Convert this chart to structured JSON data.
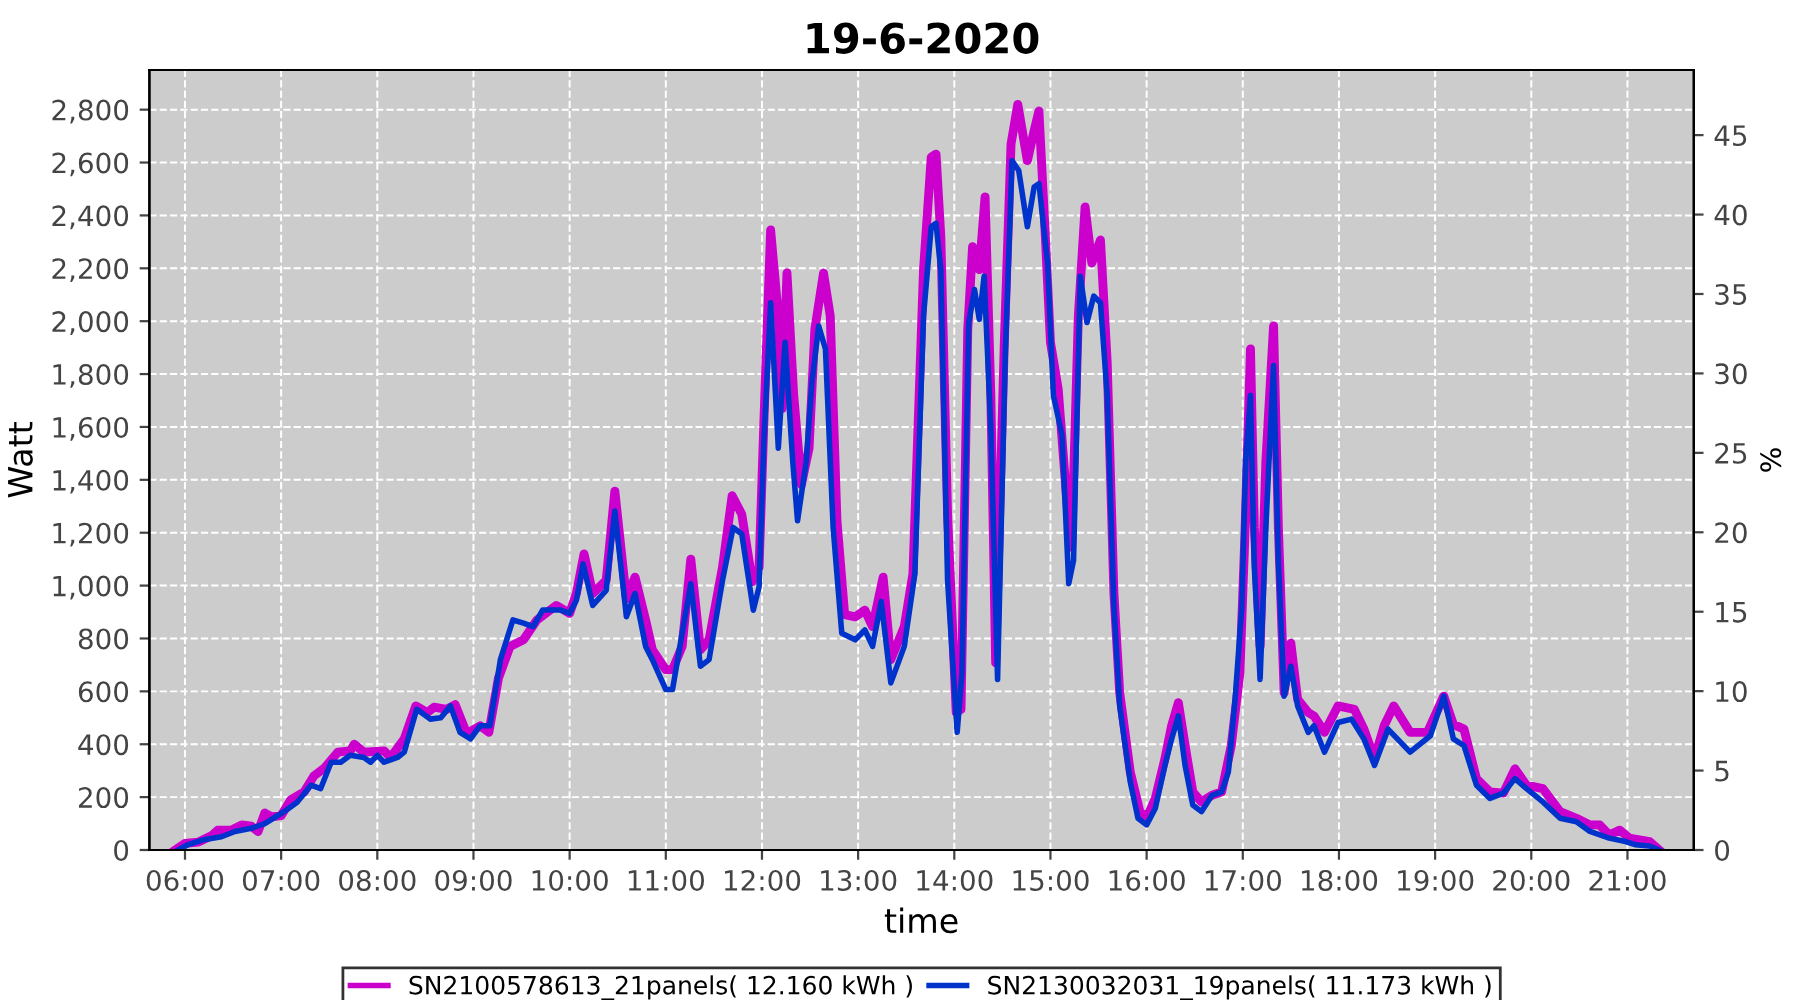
{
  "chart_data": {
    "type": "line",
    "title": "19-6-2020",
    "xlabel": "time",
    "ylabel": "Watt",
    "y2label": "%",
    "xlim": [
      5.63,
      21.69
    ],
    "ylim": [
      0,
      2950
    ],
    "y2lim": [
      0,
      49.1
    ],
    "xticks": [
      {
        "value": 6,
        "label": "06:00"
      },
      {
        "value": 7,
        "label": "07:00"
      },
      {
        "value": 8,
        "label": "08:00"
      },
      {
        "value": 9,
        "label": "09:00"
      },
      {
        "value": 10,
        "label": "10:00"
      },
      {
        "value": 11,
        "label": "11:00"
      },
      {
        "value": 12,
        "label": "12:00"
      },
      {
        "value": 13,
        "label": "13:00"
      },
      {
        "value": 14,
        "label": "14:00"
      },
      {
        "value": 15,
        "label": "15:00"
      },
      {
        "value": 16,
        "label": "16:00"
      },
      {
        "value": 17,
        "label": "17:00"
      },
      {
        "value": 18,
        "label": "18:00"
      },
      {
        "value": 19,
        "label": "19:00"
      },
      {
        "value": 20,
        "label": "20:00"
      },
      {
        "value": 21,
        "label": "21:00"
      }
    ],
    "yticks": [
      {
        "value": 0,
        "label": "0"
      },
      {
        "value": 200,
        "label": "200"
      },
      {
        "value": 400,
        "label": "400"
      },
      {
        "value": 600,
        "label": "600"
      },
      {
        "value": 800,
        "label": "800"
      },
      {
        "value": 1000,
        "label": "1,000"
      },
      {
        "value": 1200,
        "label": "1,200"
      },
      {
        "value": 1400,
        "label": "1,400"
      },
      {
        "value": 1600,
        "label": "1,600"
      },
      {
        "value": 1800,
        "label": "1,800"
      },
      {
        "value": 2000,
        "label": "2,000"
      },
      {
        "value": 2200,
        "label": "2,200"
      },
      {
        "value": 2400,
        "label": "2,400"
      },
      {
        "value": 2600,
        "label": "2,600"
      },
      {
        "value": 2800,
        "label": "2,800"
      }
    ],
    "y2ticks": [
      0,
      5,
      10,
      15,
      20,
      25,
      30,
      35,
      40,
      45
    ],
    "grid": true,
    "legend": "bottom",
    "marker": "none",
    "line_style": "solid",
    "series": [
      {
        "name": "SN2100578613_21panels( 12.160 kWh )",
        "color": "#cc00cc",
        "x": [
          5.9,
          6.0,
          6.14,
          6.28,
          6.34,
          6.48,
          6.59,
          6.69,
          6.76,
          6.83,
          6.9,
          7.0,
          7.1,
          7.24,
          7.34,
          7.45,
          7.59,
          7.72,
          7.76,
          7.86,
          8.07,
          8.14,
          8.28,
          8.4,
          8.52,
          8.59,
          8.72,
          8.81,
          8.93,
          9.07,
          9.16,
          9.26,
          9.38,
          9.52,
          9.66,
          9.86,
          10.0,
          10.07,
          10.15,
          10.24,
          10.38,
          10.47,
          10.59,
          10.68,
          10.79,
          10.86,
          11.0,
          11.07,
          11.17,
          11.26,
          11.36,
          11.45,
          11.59,
          11.69,
          11.79,
          11.9,
          11.97,
          12.02,
          12.09,
          12.17,
          12.21,
          12.26,
          12.33,
          12.41,
          12.49,
          12.55,
          12.64,
          12.71,
          12.78,
          12.86,
          12.97,
          13.07,
          13.15,
          13.26,
          13.34,
          13.48,
          13.57,
          13.68,
          13.76,
          13.81,
          13.86,
          13.93,
          14.02,
          14.07,
          14.14,
          14.19,
          14.26,
          14.32,
          14.38,
          14.43,
          14.52,
          14.59,
          14.66,
          14.76,
          14.83,
          14.88,
          14.94,
          15.0,
          15.08,
          15.17,
          15.22,
          15.29,
          15.36,
          15.43,
          15.52,
          15.59,
          15.66,
          15.72,
          15.83,
          15.93,
          16.0,
          16.09,
          16.19,
          16.26,
          16.33,
          16.4,
          16.48,
          16.57,
          16.68,
          16.78,
          16.88,
          16.97,
          17.02,
          17.08,
          17.12,
          17.18,
          17.24,
          17.32,
          17.37,
          17.43,
          17.5,
          17.57,
          17.68,
          17.74,
          17.85,
          17.99,
          18.16,
          18.26,
          18.37,
          18.47,
          18.57,
          18.74,
          18.92,
          19.09,
          19.19,
          19.3,
          19.43,
          19.57,
          19.71,
          19.83,
          19.95,
          20.12,
          20.3,
          20.47,
          20.61,
          20.71,
          20.81,
          20.92,
          21.02,
          21.23,
          21.33
        ],
        "values": [
          0,
          25,
          30,
          55,
          75,
          75,
          95,
          90,
          70,
          140,
          125,
          130,
          190,
          220,
          280,
          310,
          370,
          375,
          400,
          370,
          375,
          350,
          420,
          545,
          520,
          540,
          532,
          550,
          440,
          470,
          445,
          650,
          770,
          795,
          870,
          925,
          895,
          970,
          1120,
          970,
          1020,
          1357,
          950,
          1032,
          870,
          757,
          682,
          682,
          770,
          1100,
          757,
          795,
          1070,
          1340,
          1270,
          1015,
          1070,
          1620,
          2345,
          2020,
          1670,
          2182,
          1720,
          1382,
          1520,
          1970,
          2182,
          2020,
          1245,
          890,
          882,
          907,
          845,
          1032,
          720,
          845,
          1045,
          2195,
          2620,
          2632,
          2320,
          1270,
          520,
          532,
          1970,
          2282,
          2195,
          2470,
          1720,
          708,
          1920,
          2670,
          2820,
          2607,
          2720,
          2795,
          2370,
          1920,
          1745,
          1320,
          1145,
          2020,
          2432,
          2220,
          2307,
          1845,
          970,
          595,
          295,
          145,
          120,
          195,
          345,
          470,
          557,
          395,
          220,
          182,
          207,
          220,
          395,
          670,
          1170,
          1895,
          1220,
          770,
          1470,
          1982,
          1220,
          595,
          782,
          570,
          520,
          507,
          445,
          545,
          532,
          457,
          345,
          470,
          545,
          445,
          445,
          582,
          475,
          457,
          270,
          220,
          215,
          307,
          245,
          232,
          145,
          120,
          95,
          95,
          57,
          75,
          45,
          32,
          0
        ]
      },
      {
        "name": "SN2130032031_19panels( 11.173 kWh )",
        "color": "#0033cc",
        "x": [
          5.93,
          6.03,
          6.21,
          6.38,
          6.52,
          6.69,
          6.83,
          7.03,
          7.17,
          7.31,
          7.41,
          7.52,
          7.62,
          7.72,
          7.86,
          7.93,
          8.0,
          8.07,
          8.21,
          8.28,
          8.41,
          8.55,
          8.66,
          8.76,
          8.86,
          8.97,
          9.07,
          9.17,
          9.28,
          9.41,
          9.52,
          9.62,
          9.72,
          9.9,
          10.0,
          10.07,
          10.14,
          10.24,
          10.38,
          10.47,
          10.59,
          10.68,
          10.79,
          10.86,
          11.0,
          11.07,
          11.17,
          11.26,
          11.36,
          11.45,
          11.59,
          11.7,
          11.79,
          11.91,
          11.97,
          12.02,
          12.09,
          12.17,
          12.24,
          12.32,
          12.37,
          12.46,
          12.52,
          12.59,
          12.66,
          12.74,
          12.83,
          12.97,
          13.07,
          13.15,
          13.24,
          13.34,
          13.48,
          13.59,
          13.68,
          13.76,
          13.81,
          13.86,
          13.93,
          14.03,
          14.08,
          14.15,
          14.21,
          14.26,
          14.31,
          14.38,
          14.45,
          14.53,
          14.6,
          14.67,
          14.76,
          14.83,
          14.88,
          14.97,
          15.03,
          15.12,
          15.19,
          15.24,
          15.31,
          15.38,
          15.45,
          15.52,
          15.59,
          15.66,
          15.72,
          15.83,
          15.91,
          16.0,
          16.09,
          16.19,
          16.26,
          16.33,
          16.4,
          16.48,
          16.57,
          16.68,
          16.78,
          16.85,
          16.92,
          16.99,
          17.03,
          17.08,
          17.12,
          17.18,
          17.24,
          17.32,
          17.37,
          17.43,
          17.5,
          17.57,
          17.68,
          17.74,
          17.85,
          17.99,
          18.13,
          18.26,
          18.37,
          18.51,
          18.74,
          18.95,
          19.09,
          19.19,
          19.3,
          19.43,
          19.57,
          19.71,
          19.83,
          19.95,
          20.12,
          20.3,
          20.47,
          20.61,
          20.81,
          20.98,
          21.08,
          21.23,
          21.33
        ],
        "values": [
          0,
          20,
          40,
          50,
          70,
          82,
          100,
          145,
          182,
          245,
          232,
          332,
          332,
          358,
          350,
          332,
          358,
          332,
          350,
          370,
          532,
          495,
          500,
          545,
          445,
          420,
          470,
          470,
          720,
          870,
          858,
          845,
          908,
          908,
          895,
          945,
          1082,
          925,
          982,
          1282,
          882,
          970,
          770,
          720,
          607,
          607,
          820,
          1007,
          695,
          720,
          1020,
          1220,
          1195,
          907,
          995,
          1545,
          2070,
          1520,
          1920,
          1470,
          1245,
          1470,
          1770,
          1982,
          1895,
          1220,
          820,
          795,
          832,
          770,
          940,
          632,
          770,
          1045,
          2020,
          2357,
          2370,
          2195,
          1020,
          445,
          670,
          1995,
          2120,
          2007,
          2170,
          1595,
          645,
          1870,
          2607,
          2570,
          2357,
          2507,
          2520,
          2220,
          1720,
          1570,
          1007,
          1095,
          2170,
          1995,
          2095,
          2070,
          1720,
          920,
          545,
          257,
          120,
          95,
          157,
          320,
          420,
          507,
          320,
          170,
          145,
          207,
          220,
          295,
          570,
          920,
          1470,
          1720,
          1070,
          645,
          1220,
          1832,
          1095,
          582,
          695,
          545,
          445,
          470,
          370,
          482,
          495,
          420,
          320,
          457,
          370,
          432,
          582,
          420,
          395,
          245,
          195,
          215,
          270,
          232,
          182,
          120,
          107,
          70,
          45,
          32,
          20,
          15,
          0
        ]
      }
    ]
  }
}
